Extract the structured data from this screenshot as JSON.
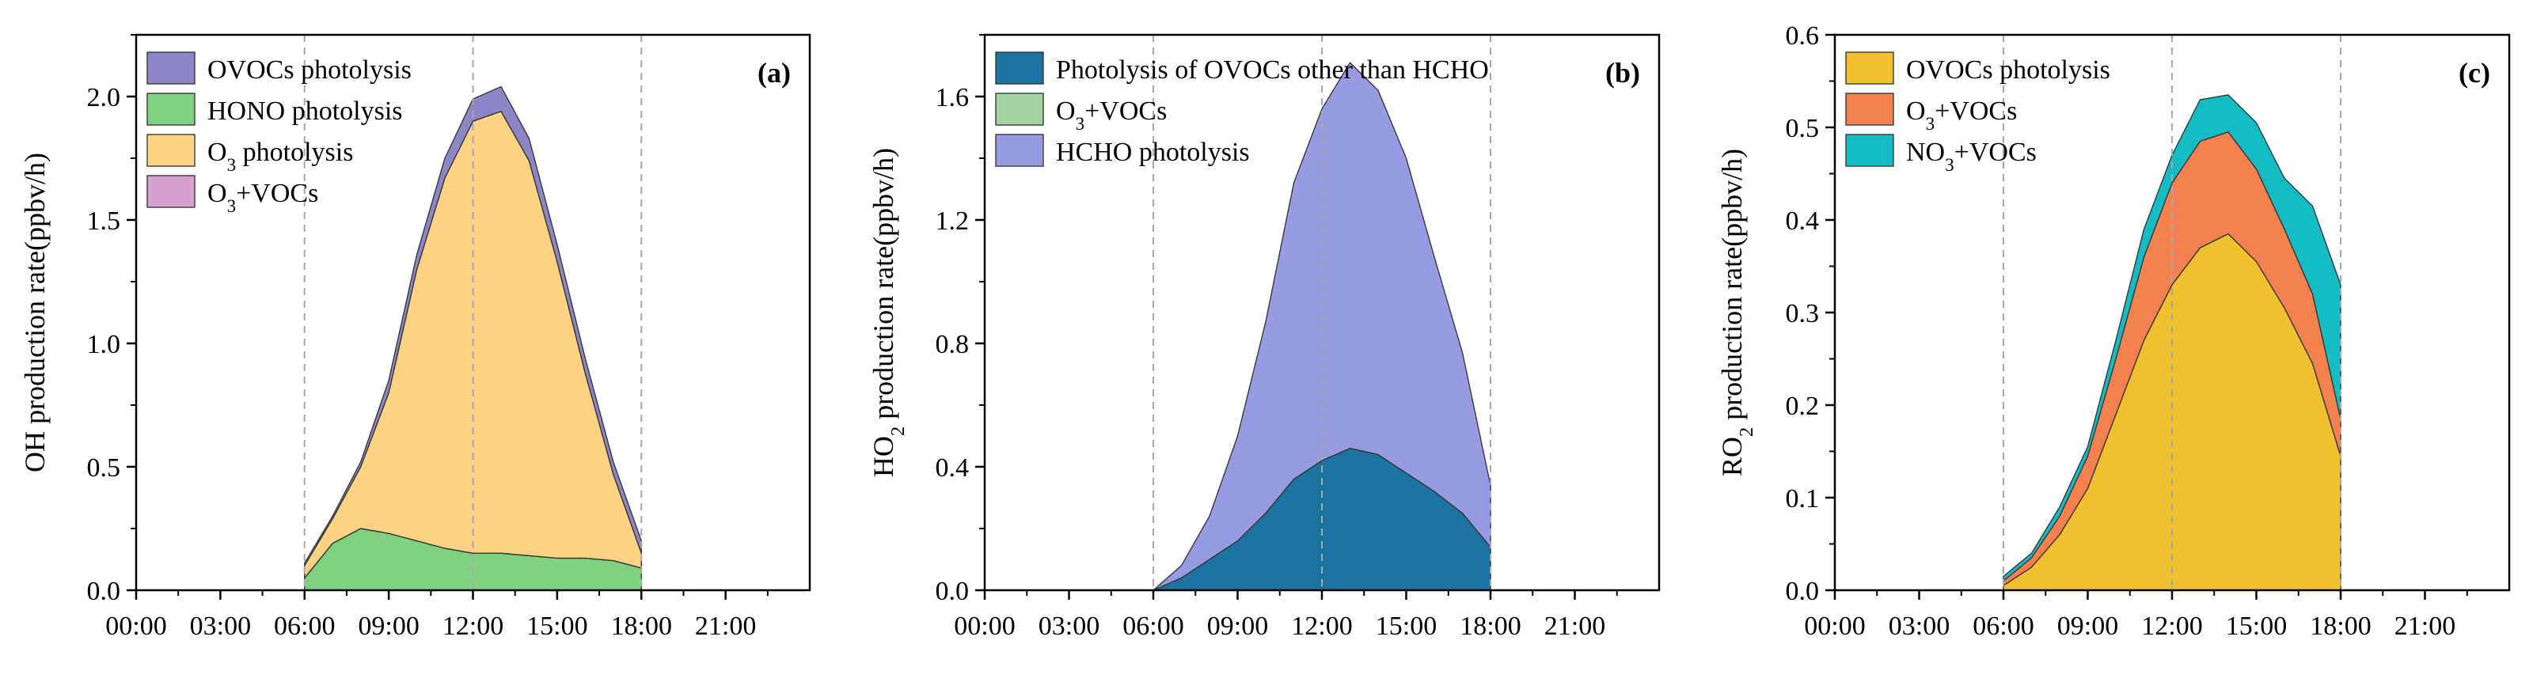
{
  "chart_data": [
    {
      "type": "area",
      "stacked": true,
      "panel_label": "(a)",
      "ylabel": "OH production rate(ppbv/h)",
      "ylabel_parts": {
        "pre": "OH production rate(ppbv/h)",
        "sub": "",
        "post": ""
      },
      "xlabel": "",
      "xlim": [
        0,
        24
      ],
      "ylim": [
        0,
        2.25
      ],
      "x_ticks": [
        0,
        3,
        6,
        9,
        12,
        15,
        18,
        21
      ],
      "x_tick_labels": [
        "00:00",
        "03:00",
        "06:00",
        "09:00",
        "12:00",
        "15:00",
        "18:00",
        "21:00"
      ],
      "y_ticks": [
        0,
        0.5,
        1,
        1.5,
        2
      ],
      "y_tick_labels": [
        "0.0",
        "0.5",
        "1.0",
        "1.5",
        "2.0"
      ],
      "vlines": [
        6,
        12,
        18
      ],
      "legend_position": "top-left",
      "legend": [
        {
          "pre": "OVOCs photolysis",
          "sub": "",
          "post": "",
          "color": "#8b86c6"
        },
        {
          "pre": "HONO photolysis",
          "sub": "",
          "post": "",
          "color": "#7fd07f"
        },
        {
          "pre": "O",
          "sub": "3",
          "post": " photolysis",
          "color": "#fdd282"
        },
        {
          "pre": "O",
          "sub": "3",
          "post": "+VOCs",
          "color": "#d5a1ce"
        }
      ],
      "x": [
        6,
        7,
        8,
        9,
        10,
        11,
        12,
        13,
        14,
        15,
        16,
        17,
        18
      ],
      "series": [
        {
          "name": "HONO photolysis",
          "color": "#7fd07f",
          "values": [
            0.05,
            0.19,
            0.25,
            0.23,
            0.2,
            0.17,
            0.15,
            0.15,
            0.14,
            0.13,
            0.13,
            0.12,
            0.09
          ]
        },
        {
          "name": "O3+VOCs",
          "color": "#d5a1ce",
          "values": [
            0,
            0,
            0,
            0,
            0,
            0,
            0,
            0,
            0,
            0,
            0,
            0,
            0
          ]
        },
        {
          "name": "O3 photolysis",
          "color": "#fdd282",
          "values": [
            0.05,
            0.1,
            0.25,
            0.57,
            1.1,
            1.5,
            1.75,
            1.79,
            1.6,
            1.2,
            0.75,
            0.35,
            0.06
          ]
        },
        {
          "name": "OVOCs photolysis",
          "color": "#8b86c6",
          "values": [
            0.01,
            0.01,
            0.02,
            0.05,
            0.06,
            0.08,
            0.09,
            0.1,
            0.09,
            0.07,
            0.06,
            0.05,
            0.05
          ]
        }
      ]
    },
    {
      "type": "area",
      "stacked": true,
      "panel_label": "(b)",
      "ylabel": "HO2 production rate(ppbv/h)",
      "ylabel_parts": {
        "pre": "HO",
        "sub": "2",
        "post": " production rate(ppbv/h)"
      },
      "xlabel": "",
      "xlim": [
        0,
        24
      ],
      "ylim": [
        0,
        1.8
      ],
      "x_ticks": [
        0,
        3,
        6,
        9,
        12,
        15,
        18,
        21
      ],
      "x_tick_labels": [
        "00:00",
        "03:00",
        "06:00",
        "09:00",
        "12:00",
        "15:00",
        "18:00",
        "21:00"
      ],
      "y_ticks": [
        0,
        0.4,
        0.8,
        1.2,
        1.6
      ],
      "y_tick_labels": [
        "0.0",
        "0.4",
        "0.8",
        "1.2",
        "1.6"
      ],
      "vlines": [
        6,
        12,
        18
      ],
      "legend_position": "top-left",
      "legend": [
        {
          "pre": "Photolysis of OVOCs other than HCHO",
          "sub": "",
          "post": "",
          "color": "#1a73a0"
        },
        {
          "pre": "O",
          "sub": "3",
          "post": "+VOCs",
          "color": "#a3d4a4"
        },
        {
          "pre": "HCHO photolysis",
          "sub": "",
          "post": "",
          "color": "#979ce2"
        }
      ],
      "x": [
        6,
        7,
        8,
        9,
        10,
        11,
        12,
        13,
        14,
        15,
        16,
        17,
        18
      ],
      "series": [
        {
          "name": "Photolysis of OVOCs other than HCHO",
          "color": "#1a73a0",
          "values": [
            0.0,
            0.04,
            0.1,
            0.16,
            0.25,
            0.36,
            0.42,
            0.46,
            0.44,
            0.38,
            0.32,
            0.25,
            0.14
          ]
        },
        {
          "name": "O3+VOCs",
          "color": "#a3d4a4",
          "values": [
            0,
            0,
            0,
            0,
            0,
            0,
            0,
            0,
            0,
            0,
            0,
            0,
            0
          ]
        },
        {
          "name": "HCHO photolysis",
          "color": "#979ce2",
          "values": [
            0.0,
            0.04,
            0.14,
            0.34,
            0.62,
            0.96,
            1.14,
            1.25,
            1.18,
            1.02,
            0.76,
            0.52,
            0.2
          ]
        }
      ]
    },
    {
      "type": "area",
      "stacked": true,
      "panel_label": "(c)",
      "ylabel": "RO2 production rate(ppbv/h)",
      "ylabel_parts": {
        "pre": "RO",
        "sub": "2",
        "post": " production rate(ppbv/h)"
      },
      "xlabel": "",
      "xlim": [
        0,
        24
      ],
      "ylim": [
        0,
        0.6
      ],
      "x_ticks": [
        0,
        3,
        6,
        9,
        12,
        15,
        18,
        21
      ],
      "x_tick_labels": [
        "00:00",
        "03:00",
        "06:00",
        "09:00",
        "12:00",
        "15:00",
        "18:00",
        "21:00"
      ],
      "y_ticks": [
        0,
        0.1,
        0.2,
        0.3,
        0.4,
        0.5,
        0.6
      ],
      "y_tick_labels": [
        "0.0",
        "0.1",
        "0.2",
        "0.3",
        "0.4",
        "0.5",
        "0.6"
      ],
      "vlines": [
        6,
        12,
        18
      ],
      "legend_position": "top-left",
      "legend": [
        {
          "pre": "OVOCs photolysis",
          "sub": "",
          "post": "",
          "color": "#f0c02f"
        },
        {
          "pre": "O",
          "sub": "3",
          "post": "+VOCs",
          "color": "#f3804f"
        },
        {
          "pre": "NO",
          "sub": "3",
          "post": "+VOCs",
          "color": "#12bcc2"
        }
      ],
      "x": [
        6,
        7,
        8,
        9,
        10,
        11,
        12,
        13,
        14,
        15,
        16,
        17,
        18
      ],
      "series": [
        {
          "name": "OVOCs photolysis",
          "color": "#f0c02f",
          "values": [
            0.005,
            0.025,
            0.06,
            0.11,
            0.19,
            0.27,
            0.33,
            0.37,
            0.385,
            0.355,
            0.305,
            0.245,
            0.145
          ]
        },
        {
          "name": "O3+VOCs",
          "color": "#f3804f",
          "values": [
            0.005,
            0.01,
            0.02,
            0.035,
            0.06,
            0.09,
            0.11,
            0.115,
            0.11,
            0.1,
            0.085,
            0.075,
            0.04
          ]
        },
        {
          "name": "NO3+VOCs",
          "color": "#12bcc2",
          "values": [
            0.005,
            0.005,
            0.01,
            0.01,
            0.02,
            0.03,
            0.03,
            0.045,
            0.04,
            0.05,
            0.055,
            0.095,
            0.145
          ]
        }
      ]
    }
  ]
}
